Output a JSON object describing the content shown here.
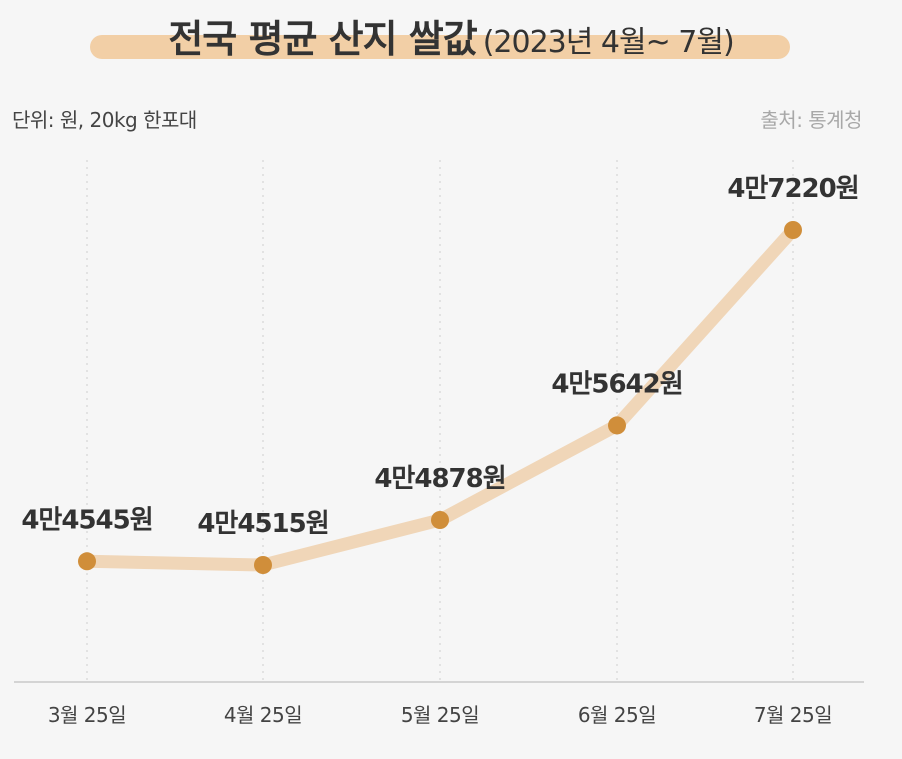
{
  "header": {
    "title_main": "전국 평균 산지 쌀값",
    "title_sub": "(2023년 4월~ 7월)"
  },
  "unit_label": "단위: 원, 20kg 한포대",
  "source_label": "출처: 통계청",
  "colors": {
    "line": "#f0d6b8",
    "marker": "#d08e3a",
    "title_bar": "#f2cfa6",
    "grid": "#dcdcdc",
    "axis": "#c8c8c8"
  },
  "chart_data": {
    "type": "line",
    "title": "전국 평균 산지 쌀값 (2023년 4월~ 7월)",
    "xlabel": "",
    "ylabel": "",
    "categories": [
      "3월 25일",
      "4월 25일",
      "5월 25일",
      "6월 25일",
      "7월 25일"
    ],
    "series": [
      {
        "values": [
          44545,
          44515,
          44878,
          45642,
          47220
        ],
        "labels": [
          "4만4545원",
          "4만4515원",
          "4만4878원",
          "4만5642원",
          "4만7220원"
        ]
      }
    ],
    "grid": "vertical dotted",
    "legend": "none"
  }
}
